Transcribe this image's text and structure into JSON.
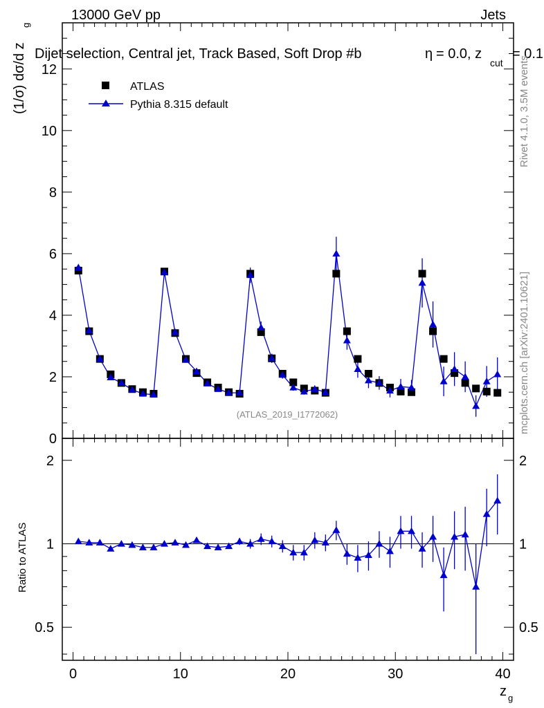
{
  "header": {
    "left_label": "13000 GeV pp",
    "right_label": "Jets"
  },
  "side_labels": {
    "rivet": "Rivet 4.1.0,  3.5M events",
    "mcplots": "mcplots.cern.ch [arXiv:2401.10621]"
  },
  "watermark": "(ATLAS_2019_I1772062)",
  "chart_data": {
    "type": "line",
    "title": "Dijet selection, Central jet, Track Based, Soft Drop #b",
    "title_suffix": "= 0.0, z",
    "title_beta": "η",
    "title_sub": "cut",
    "title_end": " = 0.1",
    "ylabel_main": "(1/σ) dσ/d z",
    "ylabel_main_sub": "g",
    "ylabel_ratio": "Ratio to ATLAS",
    "xlabel": "z",
    "xlabel_sub": "g",
    "xlim": [
      -1,
      41
    ],
    "ylim_main": [
      0,
      13.5
    ],
    "ylim_ratio": [
      0.38,
      2.4
    ],
    "x_ticks": [
      0,
      10,
      20,
      30,
      40
    ],
    "y_ticks_main": [
      0,
      2,
      4,
      6,
      8,
      10,
      12
    ],
    "y_ticks_ratio": [
      0.5,
      1,
      2
    ],
    "legend": [
      "ATLAS",
      "Pythia 8.315 default"
    ],
    "x": [
      0.5,
      1.5,
      2.5,
      3.5,
      4.5,
      5.5,
      6.5,
      7.5,
      8.5,
      9.5,
      10.5,
      11.5,
      12.5,
      13.5,
      14.5,
      15.5,
      16.5,
      17.5,
      18.5,
      19.5,
      20.5,
      21.5,
      22.5,
      23.5,
      24.5,
      25.5,
      26.5,
      27.5,
      28.5,
      29.5,
      30.5,
      31.5,
      32.5,
      33.5,
      34.5,
      35.5,
      36.5,
      37.5,
      38.5,
      39.5
    ],
    "series": [
      {
        "name": "ATLAS",
        "values": [
          5.45,
          3.48,
          2.58,
          2.08,
          1.8,
          1.6,
          1.5,
          1.45,
          5.42,
          3.42,
          2.58,
          2.12,
          1.82,
          1.65,
          1.5,
          1.45,
          5.35,
          3.45,
          2.6,
          2.1,
          1.82,
          1.62,
          1.55,
          1.48,
          5.35,
          3.48,
          2.58,
          2.1,
          1.8,
          1.65,
          1.52,
          1.5,
          5.35,
          3.48,
          2.58,
          2.12,
          1.8,
          1.62,
          1.52,
          1.48
        ],
        "errors": [
          0.05,
          0.04,
          0.03,
          0.03,
          0.03,
          0.03,
          0.03,
          0.03,
          0.05,
          0.04,
          0.03,
          0.03,
          0.03,
          0.03,
          0.03,
          0.03,
          0.05,
          0.04,
          0.03,
          0.03,
          0.03,
          0.03,
          0.03,
          0.03,
          0.06,
          0.05,
          0.04,
          0.04,
          0.04,
          0.04,
          0.04,
          0.04,
          0.08,
          0.07,
          0.06,
          0.06,
          0.06,
          0.06,
          0.06,
          0.06
        ]
      },
      {
        "name": "Pythia 8.315 default",
        "values": [
          5.55,
          3.5,
          2.58,
          1.98,
          1.8,
          1.58,
          1.45,
          1.42,
          5.4,
          3.45,
          2.55,
          2.18,
          1.78,
          1.6,
          1.48,
          1.48,
          5.3,
          3.6,
          2.6,
          2.06,
          1.65,
          1.52,
          1.6,
          1.5,
          6.0,
          3.18,
          2.25,
          1.88,
          1.8,
          1.55,
          1.68,
          1.65,
          5.05,
          3.7,
          1.85,
          2.25,
          2.0,
          1.05,
          1.85,
          2.08
        ],
        "errors": [
          0.08,
          0.06,
          0.05,
          0.05,
          0.05,
          0.05,
          0.05,
          0.05,
          0.1,
          0.08,
          0.07,
          0.06,
          0.06,
          0.06,
          0.06,
          0.06,
          0.25,
          0.2,
          0.15,
          0.12,
          0.1,
          0.1,
          0.12,
          0.12,
          0.55,
          0.3,
          0.28,
          0.25,
          0.22,
          0.22,
          0.25,
          0.25,
          0.8,
          0.75,
          0.48,
          0.55,
          0.5,
          0.35,
          0.5,
          0.55
        ]
      }
    ],
    "ratio": {
      "values": [
        1.02,
        1.01,
        1.01,
        0.96,
        1.0,
        0.99,
        0.97,
        0.97,
        1.0,
        1.01,
        0.99,
        1.03,
        0.98,
        0.97,
        0.98,
        1.02,
        1.0,
        1.04,
        1.02,
        0.98,
        0.93,
        0.93,
        1.03,
        1.01,
        1.12,
        0.92,
        0.89,
        0.91,
        1.0,
        0.94,
        1.11,
        1.11,
        0.96,
        1.06,
        0.77,
        1.06,
        1.08,
        0.7,
        1.28,
        1.43
      ],
      "errors": [
        0.02,
        0.02,
        0.02,
        0.02,
        0.02,
        0.02,
        0.02,
        0.02,
        0.02,
        0.02,
        0.02,
        0.02,
        0.02,
        0.02,
        0.02,
        0.03,
        0.04,
        0.05,
        0.05,
        0.05,
        0.06,
        0.06,
        0.07,
        0.07,
        0.09,
        0.08,
        0.1,
        0.11,
        0.11,
        0.12,
        0.15,
        0.15,
        0.14,
        0.2,
        0.2,
        0.25,
        0.28,
        0.3,
        0.3,
        0.35
      ]
    }
  }
}
